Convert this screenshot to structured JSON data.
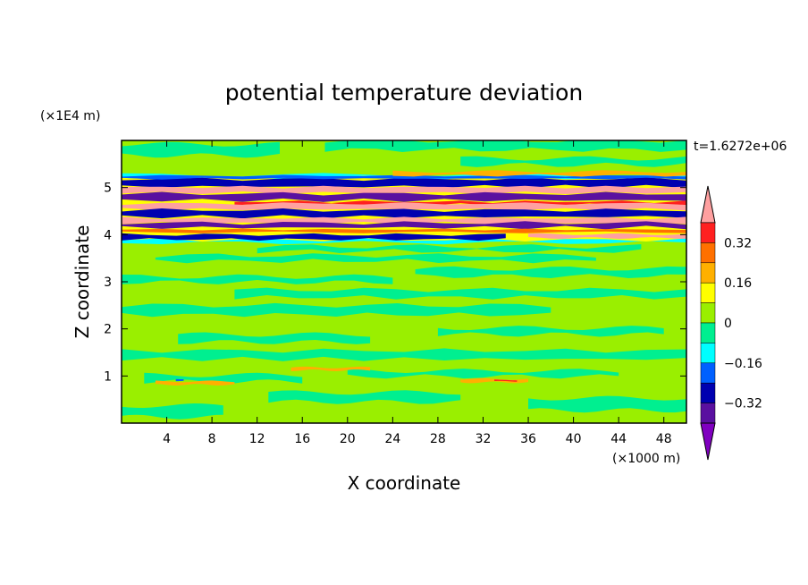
{
  "chart_data": {
    "type": "heatmap",
    "title": "potential temperature deviation",
    "xlabel": "X coordinate",
    "ylabel": "Z coordinate",
    "x_unit": "(×1000 m)",
    "y_unit": "(×1E4 m)",
    "time_label": "t=1.6272e+06",
    "xlim": [
      0,
      50
    ],
    "ylim": [
      0,
      6
    ],
    "x_ticks": [
      4,
      8,
      12,
      16,
      20,
      24,
      28,
      32,
      36,
      40,
      44,
      48
    ],
    "x_tick_labels": [
      "4",
      "8",
      "12",
      "16",
      "20",
      "24",
      "28",
      "32",
      "36",
      "40",
      "44",
      "48"
    ],
    "y_ticks": [
      1,
      2,
      3,
      4,
      5
    ],
    "y_tick_labels": [
      "1",
      "2",
      "3",
      "4",
      "5"
    ],
    "colorbar": {
      "levels": [
        -0.4,
        -0.32,
        -0.24,
        -0.16,
        -0.08,
        0,
        0.08,
        0.16,
        0.24,
        0.32,
        0.4
      ],
      "labels": [
        "0.32",
        "0.16",
        "0",
        "−0.16",
        "−0.32"
      ],
      "label_values": [
        0.32,
        0.16,
        0,
        -0.16,
        -0.32
      ],
      "colors": [
        "#ffa0a0",
        "#ff2020",
        "#ff7000",
        "#ffb000",
        "#ffff00",
        "#9aef00",
        "#00ef90",
        "#00ffff",
        "#0060ff",
        "#0000b0",
        "#5a10a0",
        "#8000c0"
      ]
    },
    "field_notes": {
      "background_level": "0 to 0.08",
      "secondary_level": "-0.08 to 0",
      "strong_layer_z_range": [
        3.8,
        5.3
      ]
    }
  }
}
